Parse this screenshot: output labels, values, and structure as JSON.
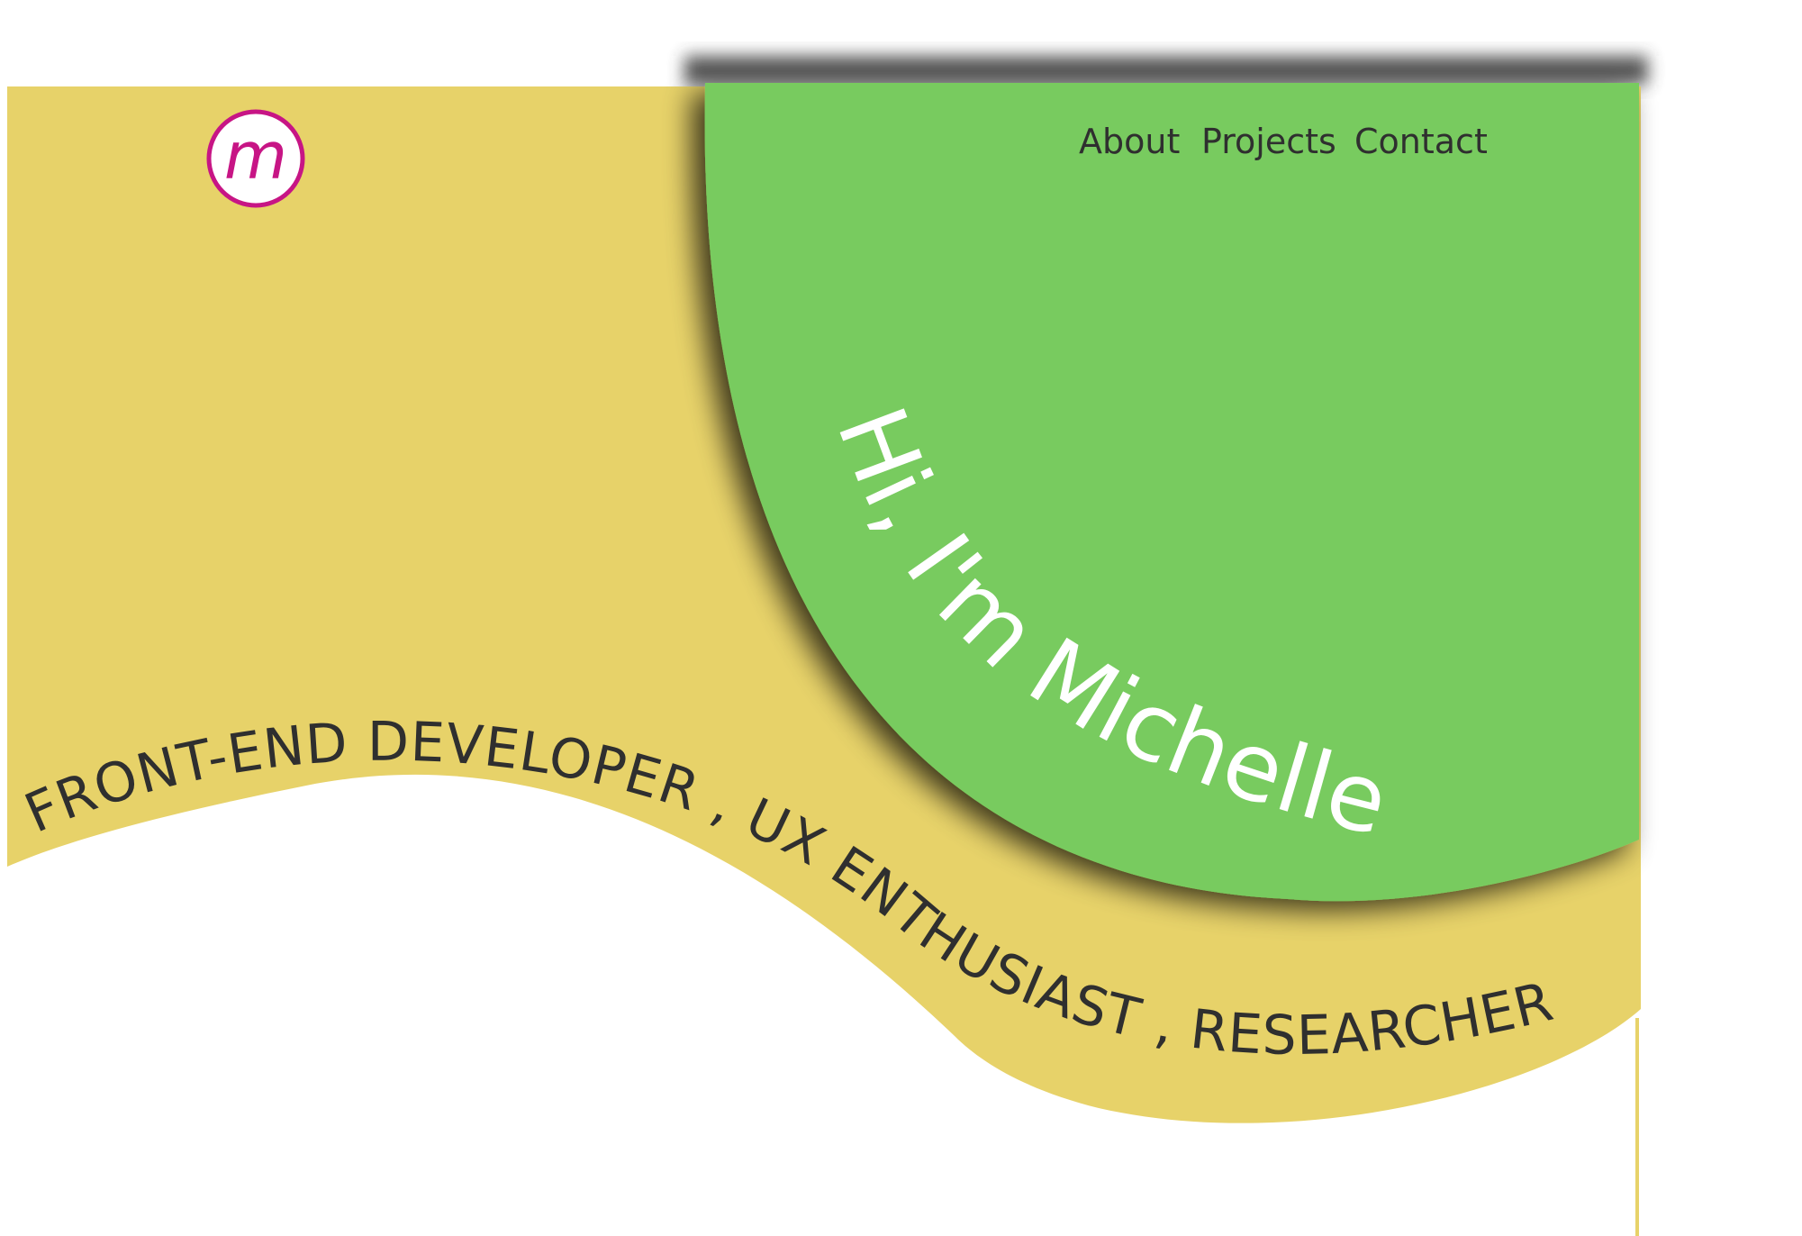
{
  "colors": {
    "background": "#ffffff",
    "yellow_panel": "#e7d269",
    "green_panel": "#78cb5e",
    "nav_text": "#2f2f2f",
    "headline_text": "#ffffff",
    "tagline_text": "#2f2f2f",
    "logo_ring": "#c71585",
    "logo_fill": "#ffffff"
  },
  "logo": {
    "letter": "m",
    "icon": "monogram-logo-icon"
  },
  "nav": {
    "about": "About",
    "projects": "Projects",
    "contact": "Contact"
  },
  "hero": {
    "greeting": "Hi, I'm Michelle",
    "tagline": "FRONT-END DEVELOPER , UX ENTHUSIAST , RESEARCHER"
  }
}
